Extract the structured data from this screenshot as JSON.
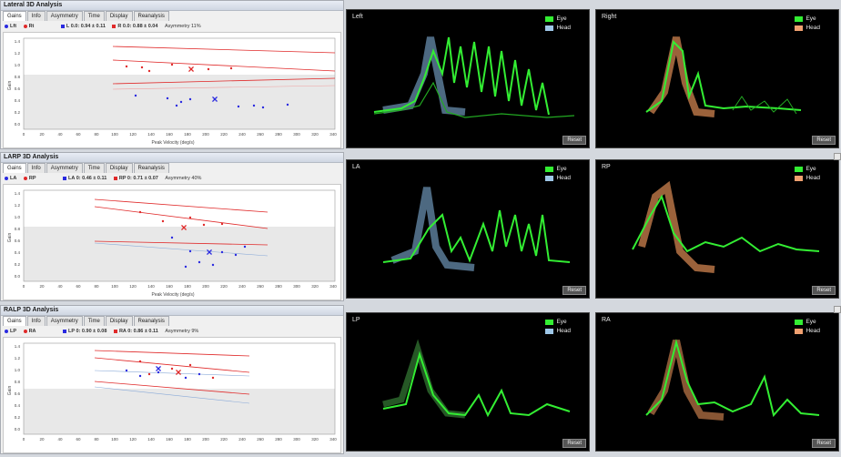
{
  "panels": [
    {
      "title": "Lateral 3D Analysis",
      "tabs": [
        "Gains",
        "Info",
        "Asymmetry",
        "Time",
        "Display",
        "Reanalysis"
      ],
      "legend": {
        "left": "Lft",
        "right": "Rt",
        "left_stat": "L 0.0: 0.94 ± 0.11",
        "right_stat": "R 0.0: 0.88 ± 0.04",
        "asym": "Asymmetry 11%"
      },
      "xlabel": "Peak Velocity (deg/s)",
      "ylabel": "Gain",
      "views": [
        {
          "label": "Left",
          "legend": [
            "Eye",
            "Head"
          ]
        },
        {
          "label": "Right",
          "legend": [
            "Eye",
            "Head"
          ]
        }
      ]
    },
    {
      "title": "LARP 3D Analysis",
      "tabs": [
        "Gains",
        "Info",
        "Asymmetry",
        "Time",
        "Display",
        "Reanalysis"
      ],
      "legend": {
        "left": "LA",
        "right": "RP",
        "left_stat": "LA 0: 0.46 ± 0.11",
        "right_stat": "RP 0: 0.71 ± 0.07",
        "asym": "Asymmetry 40%"
      },
      "xlabel": "Peak Velocity (deg/s)",
      "ylabel": "Gain",
      "views": [
        {
          "label": "LA",
          "legend": [
            "Eye",
            "Head"
          ]
        },
        {
          "label": "RP",
          "legend": [
            "Eye",
            "Head"
          ]
        }
      ]
    },
    {
      "title": "RALP 3D Analysis",
      "tabs": [
        "Gains",
        "Info",
        "Asymmetry",
        "Time",
        "Display",
        "Reanalysis"
      ],
      "legend": {
        "left": "LP",
        "right": "RA",
        "left_stat": "LP 0: 0.90 ± 0.08",
        "right_stat": "RA 0: 0.86 ± 0.11",
        "asym": "Asymmetry 9%"
      },
      "xlabel": "Peak Velocity (deg/s)",
      "ylabel": "Gain",
      "views": [
        {
          "label": "LP",
          "legend": [
            "Eye",
            "Head"
          ]
        },
        {
          "label": "RA",
          "legend": [
            "Eye",
            "Head"
          ]
        }
      ]
    }
  ],
  "reset_label": "Reset",
  "x_ticks": [
    "0",
    "20",
    "40",
    "60",
    "80",
    "100",
    "120",
    "140",
    "160",
    "180",
    "200",
    "220",
    "240",
    "260",
    "280",
    "300",
    "320",
    "340"
  ],
  "y_ticks": [
    "1.4",
    "1.2",
    "1.0",
    "0.8",
    "0.6",
    "0.4",
    "0.2",
    "0.0"
  ],
  "colors": {
    "left_series": "#2a2ae0",
    "right_series": "#e02a2a",
    "eye_trace": "#33ee33",
    "head_left": "#9ec7e8",
    "head_right": "#f0a070"
  }
}
